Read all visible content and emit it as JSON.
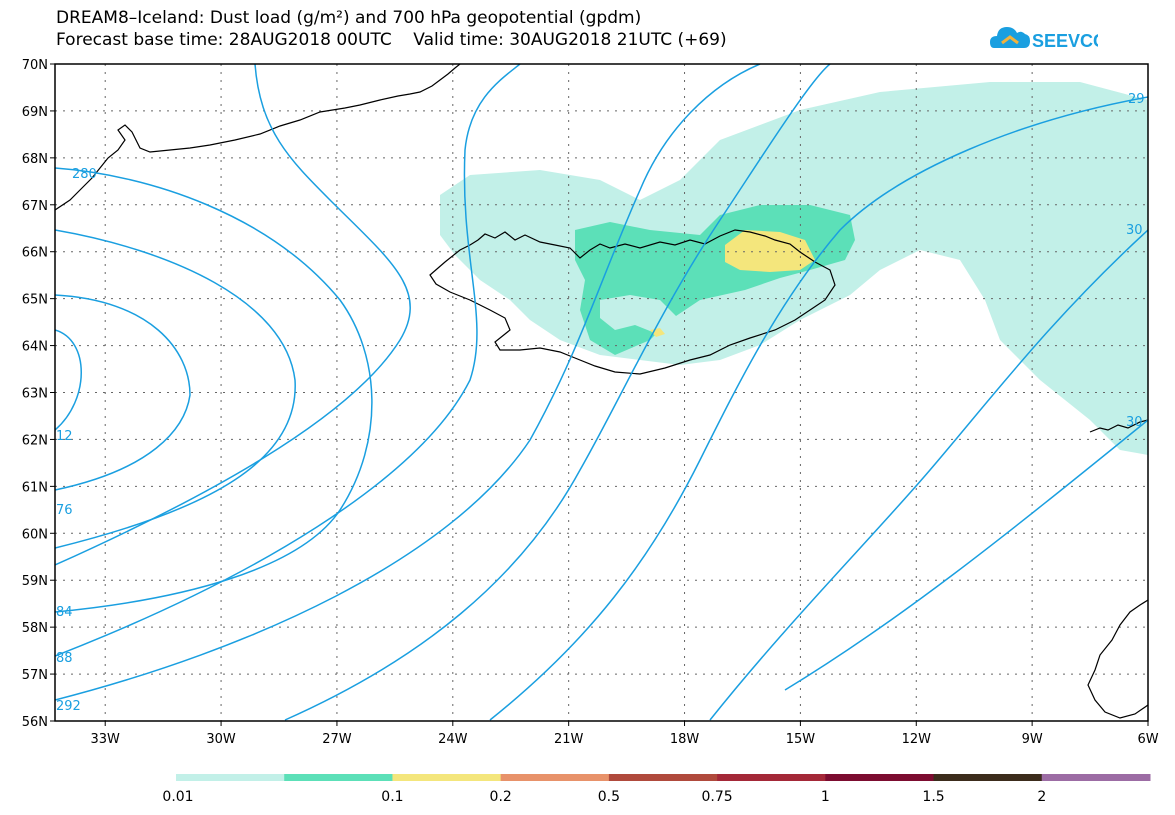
{
  "title_line1": "DREAM8–Iceland: Dust load (g/m²) and 700 hPa geopotential (gpdm)",
  "title_line2": "Forecast base time: 28AUG2018 00UTC    Valid time: 30AUG2018 21UTC (+69)",
  "logo": {
    "text": "SEEVCCC",
    "icon": "cloud-icon",
    "color": "#1a9fe0"
  },
  "map": {
    "lat_range": [
      56,
      70
    ],
    "lon_range": [
      -34.3,
      -6
    ],
    "lat_labels": [
      "56N",
      "57N",
      "58N",
      "59N",
      "60N",
      "61N",
      "62N",
      "63N",
      "64N",
      "65N",
      "66N",
      "67N",
      "68N",
      "69N",
      "70N"
    ],
    "lon_labels": [
      "33W",
      "30W",
      "27W",
      "24W",
      "21W",
      "18W",
      "15W",
      "12W",
      "9W",
      "6W"
    ],
    "grid": "dotted",
    "contour_color": "#1a9fe0",
    "contour_labels": [
      "280",
      "12",
      "76",
      "84",
      "88",
      "292",
      "29",
      "30",
      "30"
    ]
  },
  "colorbar": {
    "labels": [
      "0.01",
      "0.1",
      "0.2",
      "0.5",
      "0.75",
      "1",
      "1.5",
      "2"
    ],
    "colors": [
      "#c2f0e8",
      "#5ce0b8",
      "#f4e67c",
      "#e8926a",
      "#b04a3c",
      "#a42838",
      "#7c0c30",
      "#3c2c1c",
      "#9c6ca4"
    ]
  }
}
